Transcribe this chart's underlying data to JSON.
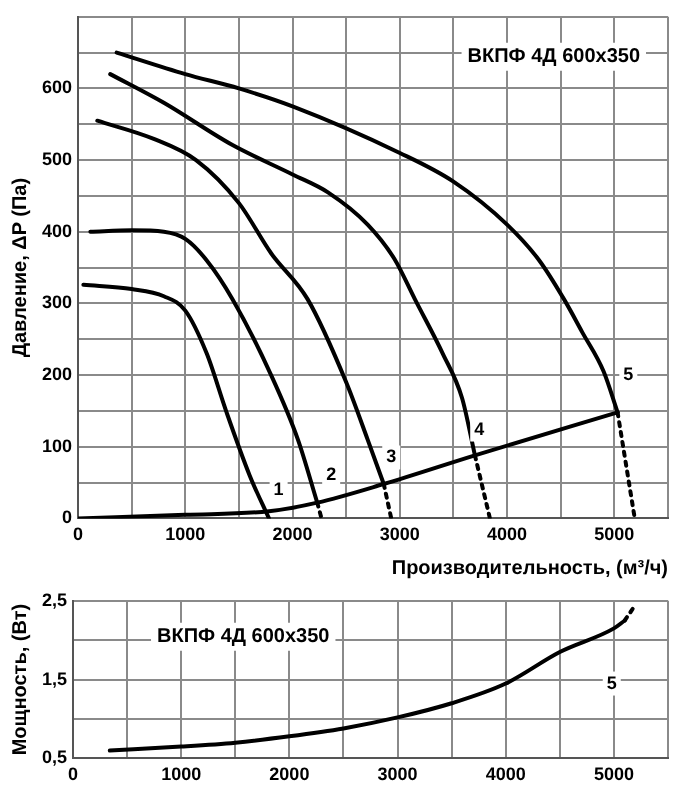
{
  "chart_data": [
    {
      "type": "line",
      "title": "ВКПФ 4Д 600x350",
      "xlabel": "Производительность, (м³/ч)",
      "ylabel": "Давление, ΔP (Па)",
      "xlim": [
        0,
        5500
      ],
      "ylim": [
        0,
        700
      ],
      "xticks": [
        0,
        {
          "value": 500,
          "label": null
        },
        1000,
        {
          "value": 1500,
          "label": null
        },
        2000,
        {
          "value": 2500,
          "label": null
        },
        3000,
        {
          "value": 3500,
          "label": null
        },
        4000,
        {
          "value": 4500,
          "label": null
        },
        5000,
        {
          "value": 5500,
          "label": null
        }
      ],
      "yticks": [
        0,
        {
          "value": 50,
          "label": null
        },
        100,
        {
          "value": 150,
          "label": null
        },
        200,
        {
          "value": 250,
          "label": null
        },
        300,
        {
          "value": 350,
          "label": null
        },
        400,
        {
          "value": 450,
          "label": null
        },
        500,
        {
          "value": 550,
          "label": null
        },
        600,
        {
          "value": 650,
          "label": null
        },
        {
          "value": 700,
          "label": null
        }
      ],
      "grid": true,
      "legend": false,
      "marker": "none",
      "series": [
        {
          "color": "#000000",
          "line_style": "solid",
          "x": [
            50,
            500,
            800,
            1000,
            1200,
            1380,
            1600,
            1780
          ],
          "values": [
            326,
            320,
            310,
            290,
            230,
            150,
            60,
            0
          ]
        },
        {
          "color": "#000000",
          "line_style": "solid",
          "x": [
            115,
            500,
            800,
            1000,
            1200,
            1440,
            1800,
            2050,
            2230
          ],
          "values": [
            400,
            402,
            400,
            390,
            360,
            306,
            200,
            110,
            22
          ]
        },
        {
          "color": "#000000",
          "line_style": "dotted",
          "x": [
            2230,
            2270
          ],
          "values": [
            22,
            0
          ]
        },
        {
          "color": "#000000",
          "line_style": "solid",
          "x": [
            180,
            700,
            1100,
            1500,
            1800,
            2140,
            2500,
            2700,
            2850
          ],
          "values": [
            555,
            530,
            500,
            440,
            370,
            306,
            190,
            110,
            48
          ]
        },
        {
          "color": "#000000",
          "line_style": "dotted",
          "x": [
            2850,
            2920
          ],
          "values": [
            48,
            0
          ]
        },
        {
          "color": "#000000",
          "line_style": "solid",
          "x": [
            300,
            800,
            1440,
            2000,
            2330,
            2700,
            2950,
            3140,
            3400,
            3580,
            3700
          ],
          "values": [
            620,
            580,
            521,
            480,
            455,
            410,
            362,
            306,
            230,
            168,
            88
          ]
        },
        {
          "color": "#000000",
          "line_style": "dotted",
          "x": [
            3700,
            3840
          ],
          "values": [
            88,
            0
          ]
        },
        {
          "color": "#000000",
          "line_style": "solid",
          "x": [
            360,
            1000,
            1500,
            2000,
            3000,
            3500,
            4000,
            4300,
            4530,
            4700,
            4900,
            5030
          ],
          "values": [
            650,
            620,
            600,
            575,
            510,
            470,
            410,
            360,
            306,
            260,
            205,
            148
          ]
        },
        {
          "color": "#000000",
          "line_style": "dotted",
          "x": [
            5030,
            5190
          ],
          "values": [
            148,
            0
          ]
        },
        {
          "color": "#000000",
          "line_style": "solid",
          "x": [
            0,
            1000,
            1780,
            2230,
            2850,
            3700,
            5030
          ],
          "values": [
            0,
            5,
            10,
            22,
            48,
            88,
            148
          ]
        }
      ],
      "annotations": [
        {
          "text": "1",
          "x": 1870,
          "y": 40
        },
        {
          "text": "2",
          "x": 2360,
          "y": 60
        },
        {
          "text": "3",
          "x": 2920,
          "y": 85
        },
        {
          "text": "4",
          "x": 3740,
          "y": 124
        },
        {
          "text": "5",
          "x": 5130,
          "y": 200
        }
      ]
    },
    {
      "type": "line",
      "title": "ВКПФ 4Д 600x350",
      "ylabel": "Мощность, (Вт)",
      "xlim": [
        0,
        5500
      ],
      "ylim": [
        0.5,
        2.5
      ],
      "xticks": [
        0,
        {
          "value": 500,
          "label": null
        },
        1000,
        {
          "value": 1500,
          "label": null
        },
        2000,
        {
          "value": 2500,
          "label": null
        },
        3000,
        {
          "value": 3500,
          "label": null
        },
        4000,
        {
          "value": 4500,
          "label": null
        },
        5000,
        {
          "value": 5500,
          "label": null
        }
      ],
      "yticks": [
        {
          "value": 0.5,
          "label": "0,5"
        },
        {
          "value": 1,
          "label": null
        },
        {
          "value": 1.5,
          "label": "1,5"
        },
        {
          "value": 2,
          "label": null
        },
        {
          "value": 2.5,
          "label": "2,5"
        }
      ],
      "grid": true,
      "legend": false,
      "marker": "none",
      "series": [
        {
          "color": "#000000",
          "line_style": "solid",
          "x": [
            340,
            1000,
            1500,
            2000,
            2500,
            3000,
            3500,
            4000,
            4500,
            5000,
            5100
          ],
          "values": [
            0.6,
            0.65,
            0.7,
            0.78,
            0.88,
            1.02,
            1.2,
            1.45,
            1.85,
            2.15,
            2.25
          ]
        },
        {
          "color": "#000000",
          "line_style": "dotted",
          "x": [
            5100,
            5200
          ],
          "values": [
            2.25,
            2.45
          ]
        }
      ],
      "annotations": [
        {
          "text": "5",
          "x": 4980,
          "y": 1.45
        }
      ]
    }
  ]
}
